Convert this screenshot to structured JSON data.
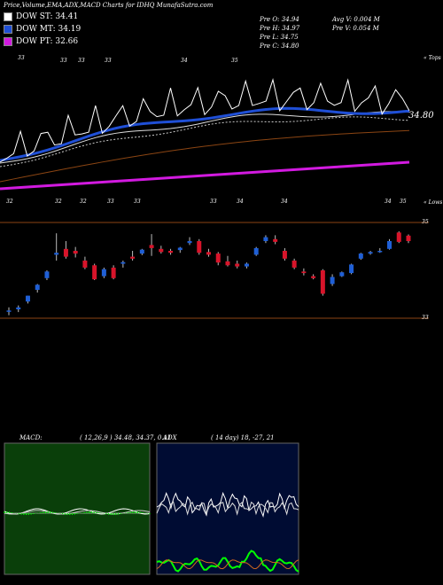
{
  "header": {
    "title": "Price,Volume,EMA,ADX,MACD Charts for IDHQ MunafaSutra.com"
  },
  "legend": [
    {
      "label": "DOW ST: 34.41",
      "color": "#ffffff"
    },
    {
      "label": "DOW MT: 34.19",
      "color": "#1f4fd6"
    },
    {
      "label": "DOW PT: 32.66",
      "color": "#d21ae0"
    }
  ],
  "ohlc": {
    "open": "Pre  O: 34.94",
    "high": "Pre  H: 34.97",
    "low": "Pre  L: 34.75",
    "close": "Pre  C: 34.80",
    "avg_vol": "Avg V: 0.004  M",
    "pre_vol": "Pre  V: 0.054  M"
  },
  "top_panel": {
    "label_top": "« Tops",
    "label_bottom": "« Lows",
    "price_label": "34.80",
    "top_markers": [
      "33",
      "33",
      "33",
      "33",
      "34",
      "35"
    ],
    "low_markers": [
      "32",
      "32",
      "32",
      "33",
      "33",
      "33",
      "34",
      "34",
      "34",
      "35"
    ]
  },
  "candle_panel": {
    "right_labels": [
      "35",
      "33"
    ]
  },
  "macd": {
    "label": "MACD:",
    "values": "( 12,26,9 ) 34.48,  34.37,  0.11"
  },
  "adx": {
    "label": "ADX",
    "values": "( 14  day) 18,  -27,  21"
  },
  "colors": {
    "white_ema": "#ffffff",
    "blue_ema": "#1f4fd6",
    "purple_ema": "#d21ae0",
    "brown_ema": "#8b4513",
    "candle_up": "#1f5fd6",
    "candle_down": "#d8142a",
    "macd_bg": "#0a3f0a",
    "adx_bg": "#000c33",
    "adx_green": "#00ff00",
    "adx_orange": "#d2691e"
  },
  "chart_data": {
    "type": "candlestick",
    "ylim": [
      32.8,
      35.3
    ],
    "candles": [
      {
        "o": 33.02,
        "h": 33.1,
        "l": 32.9,
        "c": 33.02
      },
      {
        "o": 33.05,
        "h": 33.15,
        "l": 32.98,
        "c": 33.1
      },
      {
        "o": 33.25,
        "h": 33.4,
        "l": 33.2,
        "c": 33.4
      },
      {
        "o": 33.55,
        "h": 33.7,
        "l": 33.48,
        "c": 33.68
      },
      {
        "o": 33.85,
        "h": 34.05,
        "l": 33.8,
        "c": 34.02
      },
      {
        "o": 34.45,
        "h": 35.0,
        "l": 34.3,
        "c": 34.5
      },
      {
        "o": 34.6,
        "h": 34.8,
        "l": 34.35,
        "c": 34.4
      },
      {
        "o": 34.55,
        "h": 34.65,
        "l": 34.38,
        "c": 34.48
      },
      {
        "o": 34.3,
        "h": 34.4,
        "l": 34.08,
        "c": 34.12
      },
      {
        "o": 34.18,
        "h": 34.22,
        "l": 33.8,
        "c": 33.82
      },
      {
        "o": 33.9,
        "h": 34.12,
        "l": 33.85,
        "c": 34.08
      },
      {
        "o": 34.12,
        "h": 34.18,
        "l": 33.82,
        "c": 33.85
      },
      {
        "o": 34.22,
        "h": 34.3,
        "l": 34.12,
        "c": 34.26
      },
      {
        "o": 34.4,
        "h": 34.55,
        "l": 34.3,
        "c": 34.35
      },
      {
        "o": 34.48,
        "h": 34.6,
        "l": 34.44,
        "c": 34.58
      },
      {
        "o": 34.7,
        "h": 34.98,
        "l": 34.42,
        "c": 34.62
      },
      {
        "o": 34.6,
        "h": 34.68,
        "l": 34.48,
        "c": 34.52
      },
      {
        "o": 34.55,
        "h": 34.6,
        "l": 34.45,
        "c": 34.5
      },
      {
        "o": 34.57,
        "h": 34.65,
        "l": 34.5,
        "c": 34.63
      },
      {
        "o": 34.75,
        "h": 34.9,
        "l": 34.7,
        "c": 34.8
      },
      {
        "o": 34.8,
        "h": 34.85,
        "l": 34.45,
        "c": 34.5
      },
      {
        "o": 34.52,
        "h": 34.6,
        "l": 34.4,
        "c": 34.45
      },
      {
        "o": 34.48,
        "h": 34.52,
        "l": 34.18,
        "c": 34.25
      },
      {
        "o": 34.28,
        "h": 34.42,
        "l": 34.15,
        "c": 34.18
      },
      {
        "o": 34.22,
        "h": 34.3,
        "l": 34.1,
        "c": 34.15
      },
      {
        "o": 34.15,
        "h": 34.25,
        "l": 34.1,
        "c": 34.22
      },
      {
        "o": 34.45,
        "h": 34.65,
        "l": 34.42,
        "c": 34.62
      },
      {
        "o": 34.8,
        "h": 34.95,
        "l": 34.75,
        "c": 34.9
      },
      {
        "o": 34.85,
        "h": 34.95,
        "l": 34.72,
        "c": 34.78
      },
      {
        "o": 34.55,
        "h": 34.62,
        "l": 34.3,
        "c": 34.35
      },
      {
        "o": 34.3,
        "h": 34.35,
        "l": 34.08,
        "c": 34.12
      },
      {
        "o": 34.02,
        "h": 34.1,
        "l": 33.92,
        "c": 33.98
      },
      {
        "o": 33.9,
        "h": 33.95,
        "l": 33.82,
        "c": 33.85
      },
      {
        "o": 34.05,
        "h": 34.08,
        "l": 33.4,
        "c": 33.45
      },
      {
        "o": 33.7,
        "h": 33.95,
        "l": 33.65,
        "c": 33.88
      },
      {
        "o": 33.9,
        "h": 34.02,
        "l": 33.88,
        "c": 34.0
      },
      {
        "o": 33.98,
        "h": 34.22,
        "l": 33.95,
        "c": 34.2
      },
      {
        "o": 34.35,
        "h": 34.5,
        "l": 34.32,
        "c": 34.48
      },
      {
        "o": 34.48,
        "h": 34.55,
        "l": 34.45,
        "c": 34.52
      },
      {
        "o": 34.55,
        "h": 34.62,
        "l": 34.5,
        "c": 34.55
      },
      {
        "o": 34.6,
        "h": 34.85,
        "l": 34.58,
        "c": 34.8
      },
      {
        "o": 35.02,
        "h": 35.05,
        "l": 34.75,
        "c": 34.78
      },
      {
        "o": 34.94,
        "h": 34.97,
        "l": 34.75,
        "c": 34.8
      }
    ]
  }
}
